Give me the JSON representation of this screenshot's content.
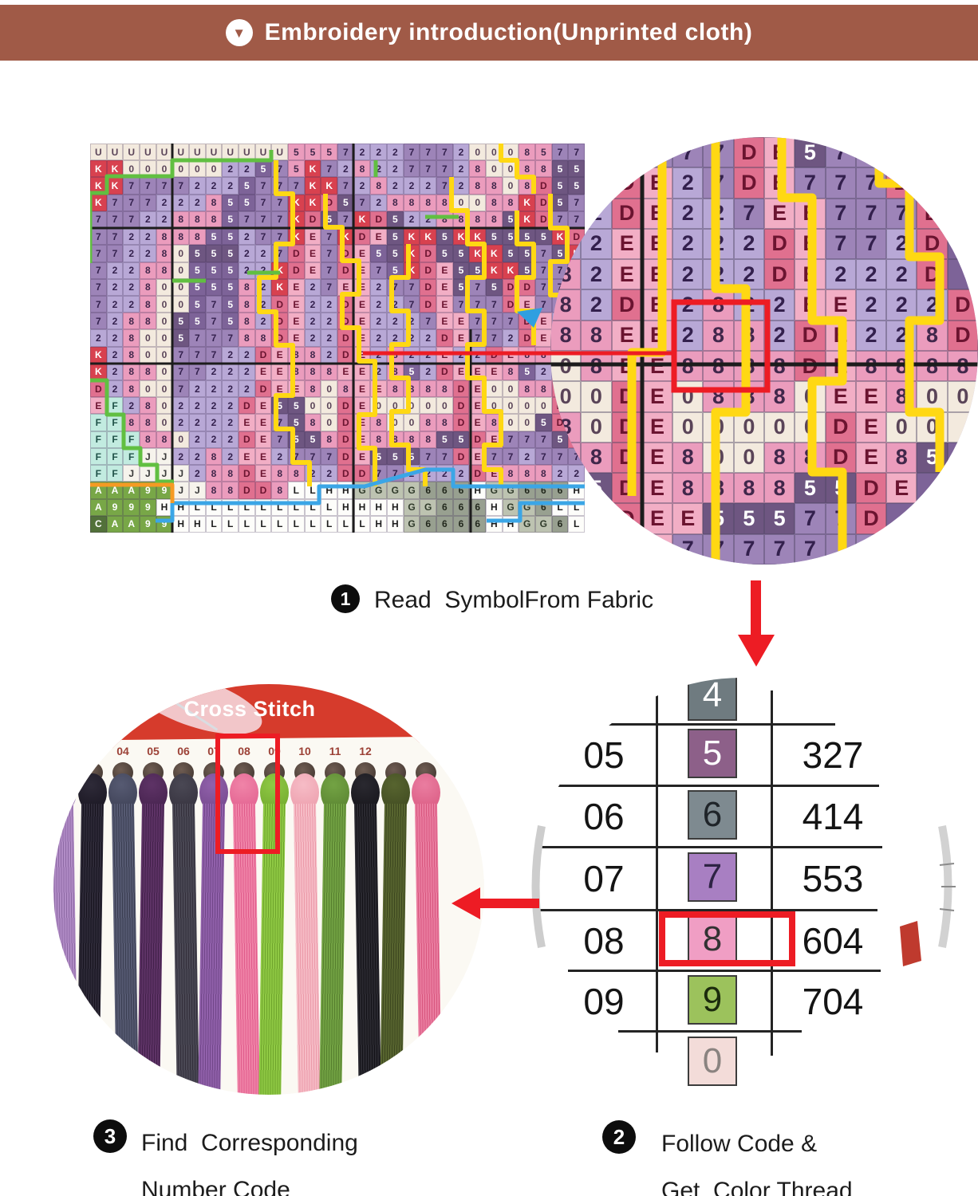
{
  "header": {
    "title": "Embroidery introduction(Unprinted cloth)"
  },
  "steps": {
    "step1": {
      "num": "1",
      "label": "Read  SymbolFrom Fabric"
    },
    "step2": {
      "num": "2",
      "line1": "Follow Code &",
      "line2": "Get  Color Thread"
    },
    "step3": {
      "num": "3",
      "line1": "Find  Corresponding",
      "line2": "Number Code"
    }
  },
  "palette": {
    "w": [
      "#f3eade",
      "#5a4458"
    ],
    "p": [
      "#9d84b8",
      "#33204d"
    ],
    "l": [
      "#b8a8d6",
      "#33204d"
    ],
    "d": [
      "#7d6398",
      "#ffffff"
    ],
    "m": [
      "#6e5681",
      "#ffffff"
    ],
    "k": [
      "#d8414f",
      "#ffffff"
    ],
    "r": [
      "#e0708f",
      "#6b1430"
    ],
    "e": [
      "#f2aec5",
      "#6b1430"
    ],
    "P": [
      "#eb9cbd",
      "#41274b"
    ],
    "c": [
      "#c2ebe0",
      "#1f5148"
    ],
    "W": [
      "#f6f3ec",
      "#3a3a3a"
    ],
    "A": [
      "#78a747",
      "#ffffff"
    ],
    "G": [
      "#bdc3b1",
      "#2f3a2a"
    ],
    "g": [
      "#98a090",
      "#23291e"
    ],
    "O": [
      "#fdfdfa",
      "#1d1d1d"
    ],
    "C": [
      "#52713a",
      "#ffffff"
    ]
  },
  "pattern_grid": {
    "cols": 30,
    "rows": [
      "Uw Uw Uw Uw Uw Uw Uw Uw Uw Uw Uw Uw 5P 5P 5P 7p 2l 2l 2l 7p 7p 7p 2l 0w 0w 0w 8P 5P 7p 7p",
      "Kk Kk 0w 0w 0w 0w 0w 0w 2l 2l 5d 7p 5P Kk 7p 2l 8P 2l 2l 7p 7p 7p 2l 8P 0w 0w 8P 8P 5m 5m",
      "Kk Kk 7p 7p 7p 7p 2l 2l 2l 5d 7p 7p 7p Kk Kk 7p 2l 8P 2l 2l 2l 7p 2l 8P 8P 0w 8P Dr 5m 5m",
      "Kk 7p 7p 7p 2l 2l 2l 8P 5d 5d 7p 7p Kk Kk Dr 5m 7p 2l 8P 8P 8P 8P 0w 0w 8P 8P Kk Dr 5m 7p",
      "7p 7p 7p 2l 2l 8P 8P 8P 5d 7p 7p 7p Kk Dr 5m 7p Kk Dr 5m 2l 2l 8P 8P 8P 8P 5m Kk Dr 7p 7p",
      "7p 7p 2l 2l 8P 8P 8P 5d 5d 2l 7p 7p Kk Ee 7p Kk Dr Ee 5m Kk Kk 5m Kk Kk 5m 5m 5m 5m Kk Dr",
      "7p 7p 2l 2l 8P 0w 5m 5m 5m 2l 2l 7p Dr Ee 7p Dr Ee 5d 5m Kk Dr 5m 5m Kk Kk 5m 5m 7p 5m Kk",
      "7p 2l 2l 8P 8P 0w 5d 5d 5d 2l 2l Kk Dr Ee 7p Dr Ee 7p 5d Kk Dr Ee 5m 5m Kk Kk 5m 7p 7p 2l",
      "7p 2l 2l 8P 0w 0w 5d 5d 5d 8P 2l Kk Ee 2l 7p Ee Ee 2l 7p 7p Dr Ee 5m 7p 5m Dr Dr 7p 7p 7p",
      "7p 2l 2l 8P 0w 0w 5d 7p 5d 8P 2l Dr Ee 2l 2l Dr Ee 2l 2l 7p Dr Ee 7p 7p 7p Dr Ee 7p 7p 2l",
      "7p 2l 8P 8P 0w 5m 5d 7p 5d 8P 2l Dr Ee 2l 2l Dr Ee 2l 2l 2l 7p Ee Ee 7p 7p 7p Dr Ee 2l 2l",
      "2l 2l 8P 0w 0w 5m 7p 7p 7p 8P 8P Dr Ee 2l 2l Dr Ee 2l 2l 2l 2l Dr Ee 7p 7p 2l Dr Ee 2l 8P",
      "Kk 2l 8P 0w 0w 7p 7p 7p 2l 2l Dr Ee 8P 8P 2l Dr Ee 2l 8P 2l 2l Ee 2l 2l Dr Ee 8P 8P 2l 2l",
      "Kk 2l 8P 8P 0w 7p 7p 2l 2l 2l Ee Ee 8P 8P 8P Ee Ee 2l 8P 5d 2l Dr Ee Ee Ee 8P 5d 2l Dr Ee",
      "Dr 2l 8P 0w 0w 7p 2l 2l 2l 2l Dr Ee Ee 8P 0w 8P Ee Ee 8P 8P 8P 8P Dr Ee 0w 0w 8P 8P Dr Ee",
      "Ee Fc 2l 8P 0w 2l 2l 2l 2l Dr Ee 5m 5m 0w 0w Dr Ee 0w 0w 0w 0w 0w Dr Ee 0w 0w 0w 0w Dr Ee",
      "Fc Fc 8P 8P 0w 2l 2l 2l 2l Ee Ee 7p 5m 8P 0w Dr Ee 8P 0w 0w 8P 8P Dr Ee 8P 0w 0w 5m Dr Ee",
      "Fc Fc Fc 8P 8P 0w 2l 2l 2l Dr Ee 7p 5m 5m 8P Dr Ee 8P 8P 8P 8P 5m 5m Dr Ee 7p 7p 7p 5m Dr",
      "Fc Fc Fc JW JW 2l 2l 8P 2l Ee Ee 2l 7p 7p 7p Dr Ee 5m 5m 5m 7p 7p Dr Ee 7p 7p 2l 7p 7p 7p",
      "Fc Fc JW JW JW JW 2l 8P 8P Dr Ee 8P 8P 2l 2l Dr Dr 7p 7p 2l 2l 2l 2l Dr Ee 8P 8P 8P 2l 2l",
      "AA AA AA 9A 9A JW JW 8P 8P Dr Dr 8P LO LO HO HO GG GG GG GG 6g 6g 6g HO GG GG 6g 6g 6g HO",
      "AA 9A 9A 9A HO HO LO LO LO LO LO LO LO LO LO HO HO HO HO GG GG 6g 6g 6g HO GG GG 6g LO LO",
      "CC AA AA 9A 9A HO HO LO LO LO LO LO LO LO LO LO LO HO HO GG 6g 6g 6g 6g HO HO GG GG 6g LO"
    ]
  },
  "magnified_grid": {
    "cols": 14,
    "rows": [
      ".p .p .p .p 7p 7p Dr Ee 5m 7p .p .p .p .p",
      ".p .p Dr Ee 2l 7p Dr Ee 7p 7p 7p Dr .p .p",
      ".l 2l Dr Ee 2l 2l 7p Ee Ee 7p 7p 7p Dr .p",
      ".l 2l Ee Ee 2l 2l 2l Dr Ee 7p 7p 2l Dr .d",
      "8P 2l Ee Ee 2l 2l 2l Dr Ee 2l 2l 2l Dr .d",
      "8P 2l Dr Ee 2l 8P 2l 2l Ee Ee 2l 2l 2l Dr",
      "8P 8P Ee Ee 2l 8P 8P 2l Dr Ee 2l 2l 8P Dr",
      "0w 8P Ee Ee 8P 8P 8P 8P Dr Ee 8P 8P 8P 8P",
      "0w 0w Dr Ee 0w 8P 8P 8P 0w Ee Ee 8P 0w 0w",
      "8P 0w Dr Ee 0w 0w 0w 0w 0w Dr Ee 0w 0w .w",
      ".P 8P Dr Ee 8P 0w 0w 8P 8P Dr Ee 8P 5m .d",
      ".P 5m Dr Ee 8P 8P 8P 8P 5m 5m Dr Ee .d .d",
      ".d .d Dr Ee Ee 5m 5m 5m 7p 7p Dr .d .p .p",
      ".p .p .p Ee 7p 7p 7p 7p 7p .p .p .p .p .p"
    ]
  },
  "thread_card": {
    "brand": "Cross Stitch",
    "labels": [
      "",
      "3",
      "04",
      "05",
      "06",
      "07",
      "08",
      "09",
      "10",
      "11",
      "12",
      "",
      ""
    ],
    "highlight_label": "08",
    "threads": [
      {
        "base": "#b18cc6",
        "shade": "#8e6aa5"
      },
      {
        "base": "#2e2a38",
        "shade": "#17141f"
      },
      {
        "base": "#565a72",
        "shade": "#3b3e52"
      },
      {
        "base": "#5e3366",
        "shade": "#42204a"
      },
      {
        "base": "#4a4854",
        "shade": "#332f3b"
      },
      {
        "base": "#9161ab",
        "shade": "#714689"
      },
      {
        "base": "#f084a8",
        "shade": "#e05c8c"
      },
      {
        "base": "#8fc944",
        "shade": "#6fa52c"
      },
      {
        "base": "#f6bcc6",
        "shade": "#eb9aa9"
      },
      {
        "base": "#73a344",
        "shade": "#567f2e"
      },
      {
        "base": "#2a2930",
        "shade": "#141318"
      },
      {
        "base": "#57642f",
        "shade": "#3d471f"
      },
      {
        "base": "#ea7da0",
        "shade": "#d8577f"
      }
    ]
  },
  "code_table": {
    "top_partial_symbol": "4",
    "bottom_partial_symbol": "0",
    "highlight_code": "08",
    "rows": [
      {
        "code": "05",
        "symbol": "5",
        "thread": "327"
      },
      {
        "code": "06",
        "symbol": "6",
        "thread": "414"
      },
      {
        "code": "07",
        "symbol": "7",
        "thread": "553"
      },
      {
        "code": "08",
        "symbol": "8",
        "thread": "604"
      },
      {
        "code": "09",
        "symbol": "9",
        "thread": "704"
      }
    ],
    "swatches": {
      "4": [
        "#6f7b80",
        "#ffffff"
      ],
      "5": [
        "#8d6089",
        "#ffffff"
      ],
      "6": [
        "#7e8a90",
        "#1f2429"
      ],
      "7": [
        "#a87fc2",
        "#2e2344"
      ],
      "8": [
        "#f09ec4",
        "#333333"
      ],
      "9": [
        "#9cc25c",
        "#1c2b0d"
      ],
      "0": [
        "#f3dcd9",
        "#8a8380"
      ]
    }
  },
  "colors": {
    "header_bg": "#a05a47",
    "accent_red": "#ed1c24",
    "outline_yellow": "#ffd813",
    "outline_green": "#61bf41",
    "outline_blue": "#3ba6e6",
    "outline_orange": "#f59a23",
    "grid_line": "#1c1c1c"
  }
}
